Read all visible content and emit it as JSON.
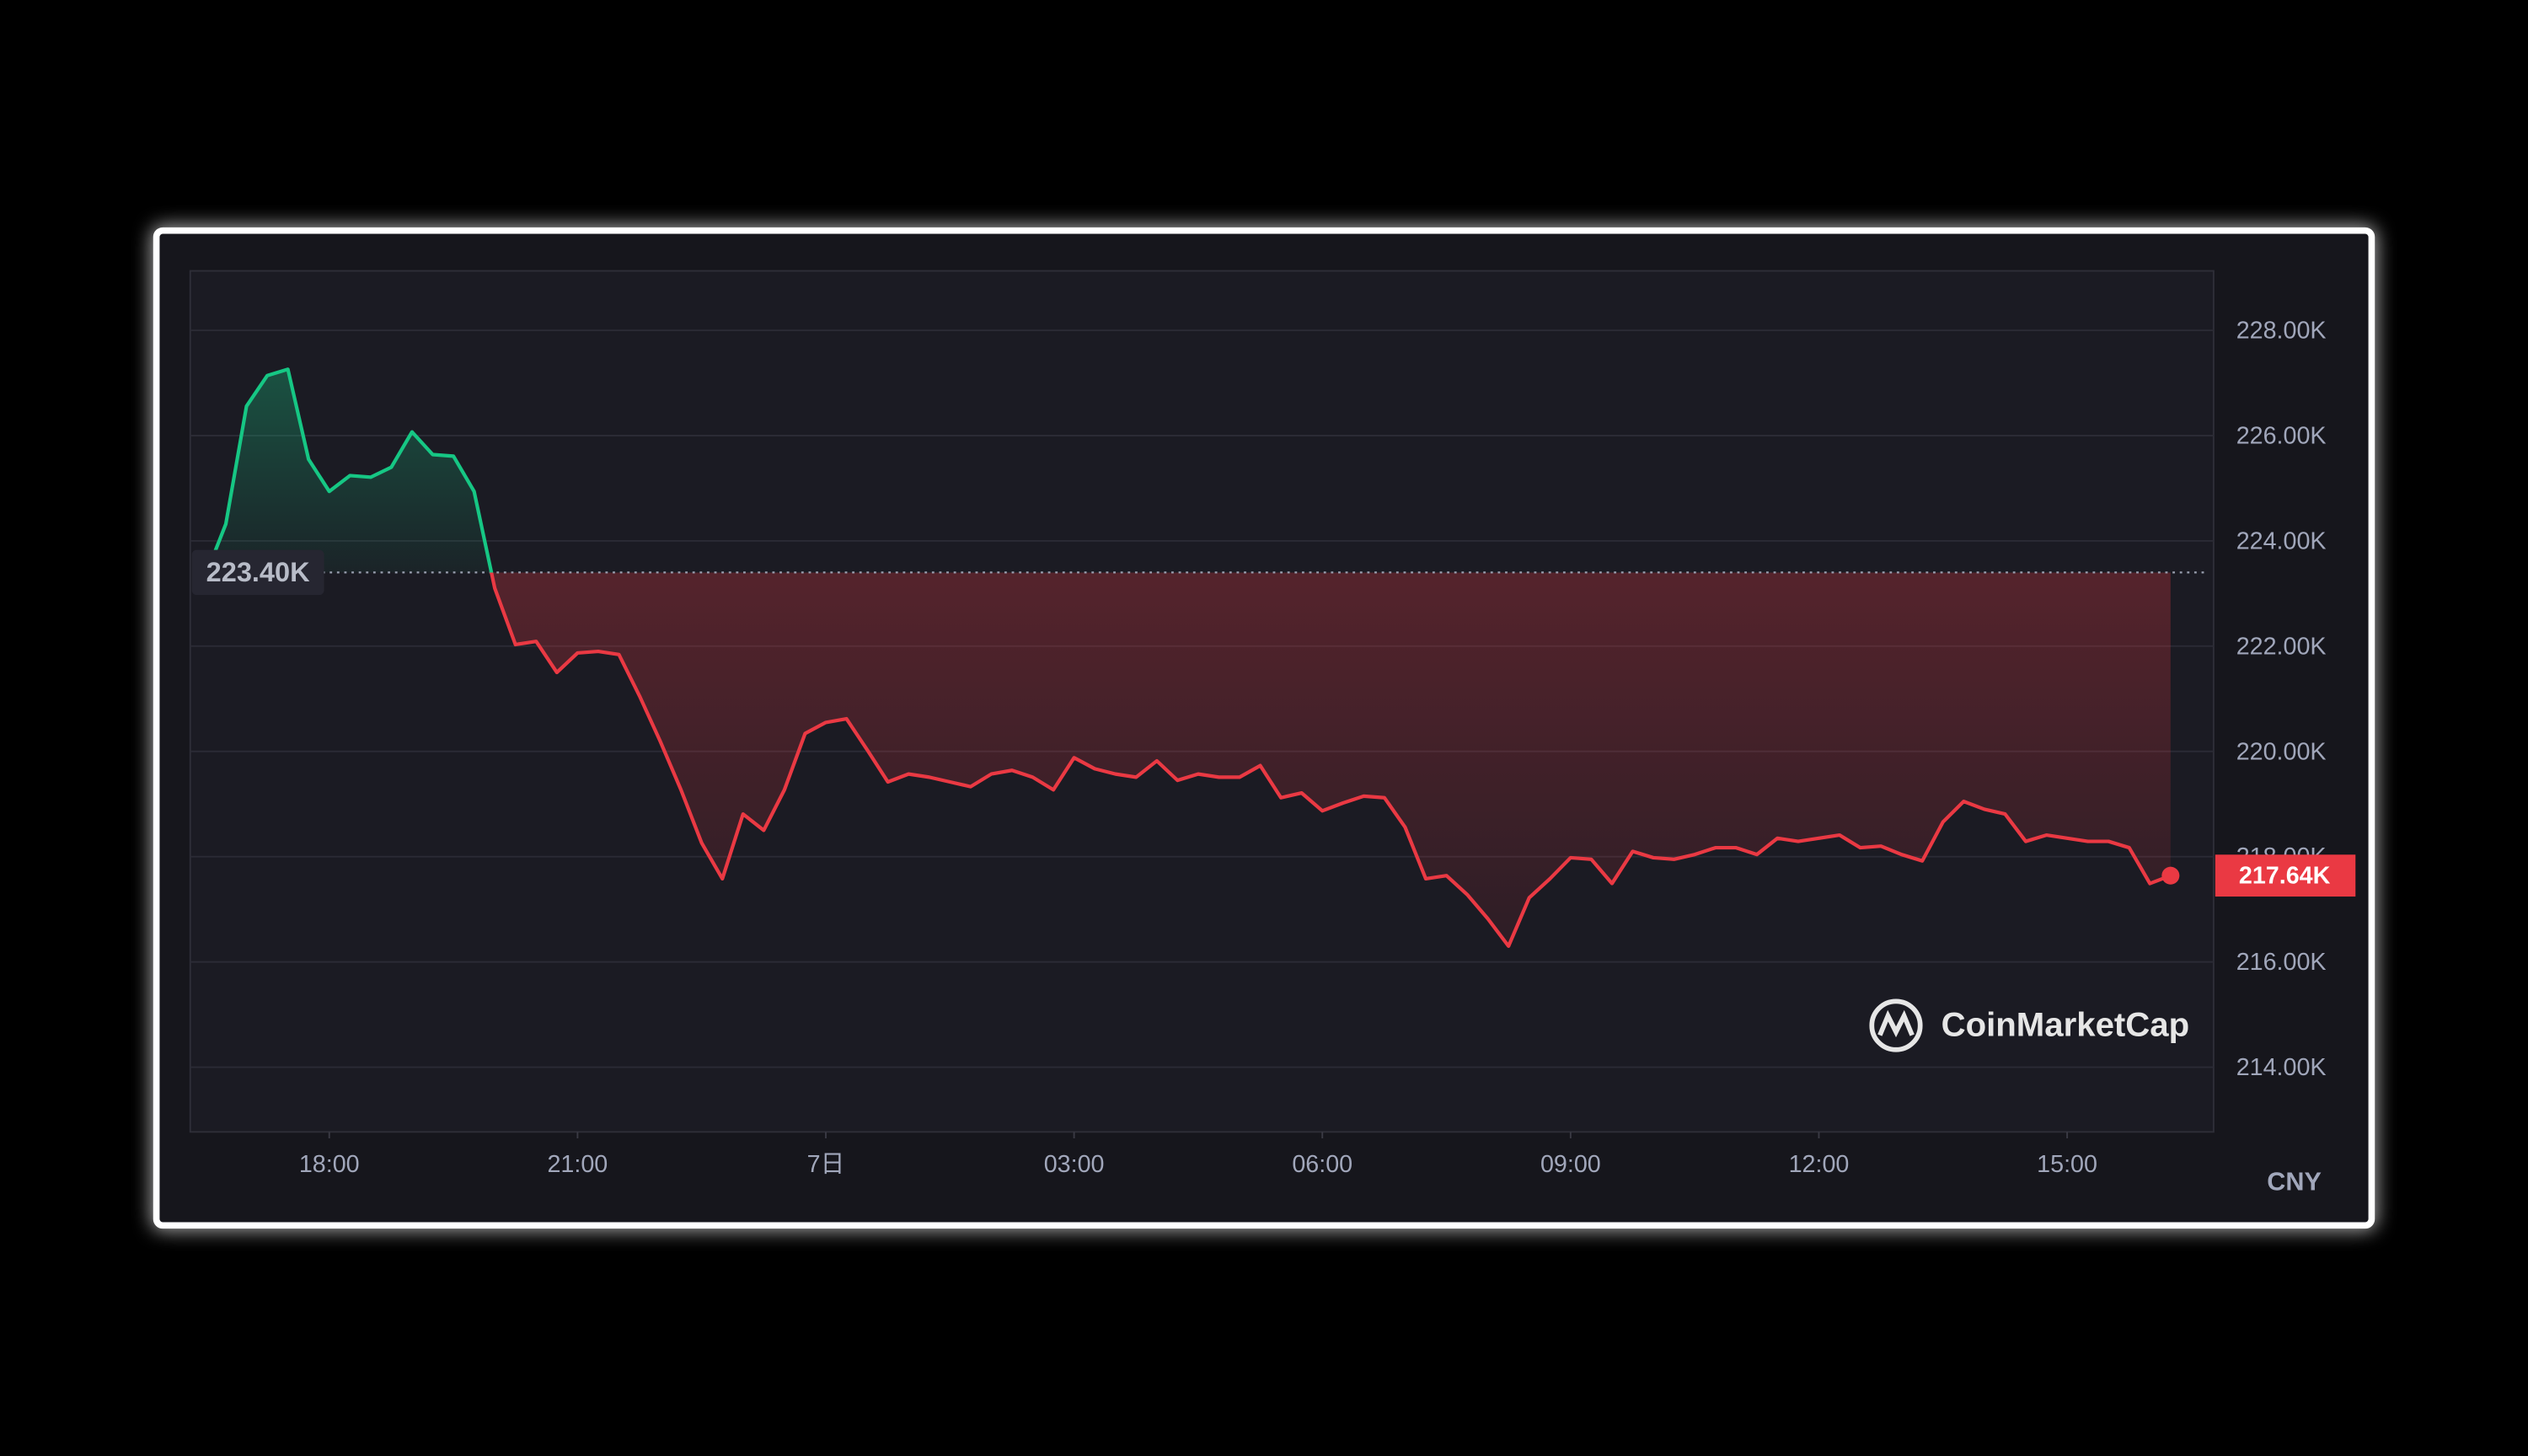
{
  "chart_data": {
    "type": "line",
    "x": [
      16.62,
      16.75,
      17,
      17.25,
      17.5,
      17.75,
      18,
      18.25,
      18.5,
      18.75,
      19,
      19.25,
      19.5,
      19.75,
      20,
      20.25,
      20.5,
      20.75,
      21,
      21.25,
      21.5,
      21.75,
      22,
      22.25,
      22.5,
      22.75,
      23,
      23.25,
      23.5,
      23.75,
      24,
      24.25,
      24.5,
      24.75,
      25,
      25.25,
      25.5,
      25.75,
      26,
      26.25,
      26.5,
      26.75,
      27,
      27.25,
      27.5,
      27.75,
      28,
      28.25,
      28.5,
      28.75,
      29,
      29.25,
      29.5,
      29.75,
      30,
      30.25,
      30.5,
      30.75,
      31,
      31.25,
      31.5,
      31.75,
      32,
      32.25,
      32.5,
      32.75,
      33,
      33.25,
      33.5,
      33.75,
      34,
      34.25,
      34.5,
      34.75,
      35,
      35.25,
      35.5,
      35.75,
      36,
      36.25,
      36.5,
      36.75,
      37,
      37.25,
      37.5,
      37.75,
      38,
      38.25,
      38.5,
      38.75,
      39,
      39.25,
      39.5,
      39.75,
      40,
      40.25
    ],
    "values": [
      223.8,
      224.32,
      226.56,
      227.14,
      227.26,
      225.55,
      224.94,
      225.24,
      225.21,
      225.4,
      226.07,
      225.64,
      225.61,
      224.94,
      223.1,
      222.03,
      222.09,
      221.5,
      221.87,
      221.9,
      221.84,
      221.05,
      220.19,
      219.27,
      218.26,
      217.58,
      218.81,
      218.5,
      219.27,
      220.34,
      220.55,
      220.62,
      220.03,
      219.42,
      219.57,
      219.51,
      219.42,
      219.33,
      219.57,
      219.64,
      219.51,
      219.27,
      219.88,
      219.67,
      219.57,
      219.51,
      219.82,
      219.45,
      219.57,
      219.51,
      219.51,
      219.73,
      219.12,
      219.21,
      218.87,
      219.02,
      219.15,
      219.12,
      218.56,
      217.58,
      217.64,
      217.28,
      216.82,
      216.3,
      217.22,
      217.58,
      217.98,
      217.95,
      217.49,
      218.1,
      217.98,
      217.95,
      218.04,
      218.17,
      218.17,
      218.04,
      218.35,
      218.29,
      218.35,
      218.41,
      218.17,
      218.2,
      218.04,
      217.92,
      218.66,
      219.05,
      218.9,
      218.81,
      218.29,
      218.41,
      218.35,
      218.29,
      218.29,
      218.17,
      217.49,
      217.64
    ],
    "up_color": "#16c784",
    "down_color": "#ea3943",
    "baseline": {
      "value": 223.4,
      "label": "223.40K"
    },
    "last_price": {
      "value": 217.64,
      "label": "217.64K"
    },
    "unit": "CNY",
    "watermark": "CoinMarketCap",
    "xlim": [
      16.32,
      40.77
    ],
    "ylim": [
      212.77,
      229.13
    ],
    "xticks": [
      {
        "value": 18,
        "label": "18:00"
      },
      {
        "value": 21,
        "label": "21:00"
      },
      {
        "value": 24,
        "label": "7日"
      },
      {
        "value": 27,
        "label": "03:00"
      },
      {
        "value": 30,
        "label": "06:00"
      },
      {
        "value": 33,
        "label": "09:00"
      },
      {
        "value": 36,
        "label": "12:00"
      },
      {
        "value": 39,
        "label": "15:00"
      }
    ],
    "yticks": [
      {
        "value": 214,
        "label": "214.00K"
      },
      {
        "value": 216,
        "label": "216.00K"
      },
      {
        "value": 218,
        "label": "218.00K"
      },
      {
        "value": 220,
        "label": "220.00K"
      },
      {
        "value": 222,
        "label": "222.00K"
      },
      {
        "value": 224,
        "label": "224.00K"
      },
      {
        "value": 226,
        "label": "226.00K"
      },
      {
        "value": 228,
        "label": "228.00K"
      }
    ],
    "grid": true
  }
}
